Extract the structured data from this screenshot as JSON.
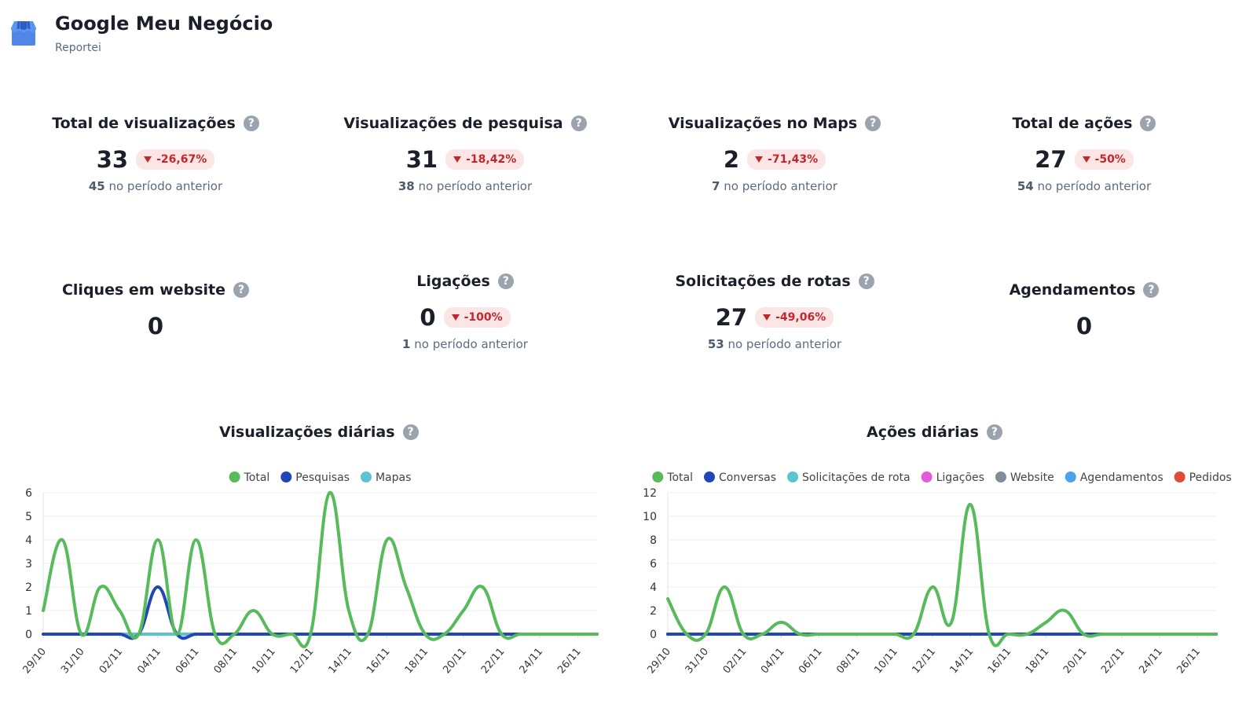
{
  "header": {
    "title": "Google Meu Negócio",
    "subtitle": "Reportei",
    "logo_icon": "google-my-business-store-icon"
  },
  "metrics": [
    {
      "label": "Total de visualizações",
      "value": "33",
      "change": "-26,67%",
      "prev_value": "45",
      "prev_text": "no período anterior"
    },
    {
      "label": "Visualizações de pesquisa",
      "value": "31",
      "change": "-18,42%",
      "prev_value": "38",
      "prev_text": "no período anterior"
    },
    {
      "label": "Visualizações no Maps",
      "value": "2",
      "change": "-71,43%",
      "prev_value": "7",
      "prev_text": "no período anterior"
    },
    {
      "label": "Total de ações",
      "value": "27",
      "change": "-50%",
      "prev_value": "54",
      "prev_text": "no período anterior"
    },
    {
      "label": "Cliques em website",
      "value": "0"
    },
    {
      "label": "Ligações",
      "value": "0",
      "change": "-100%",
      "prev_value": "1",
      "prev_text": "no período anterior"
    },
    {
      "label": "Solicitações de rotas",
      "value": "27",
      "change": "-49,06%",
      "prev_value": "53",
      "prev_text": "no período anterior"
    },
    {
      "label": "Agendamentos",
      "value": "0"
    }
  ],
  "colors": {
    "total": "#57bb5b",
    "pesquisas": "#2146b8",
    "mapas": "#5bc4d0",
    "conversas": "#2146b8",
    "solicitacoes": "#5bc4d0",
    "ligacoes": "#e45ad8",
    "website": "#7f8c99",
    "agendamentos": "#4aa3ec",
    "pedidos": "#e04a3a",
    "badge_text": "#c0282d",
    "badge_bg": "#fbe5e5"
  },
  "chart_data": [
    {
      "type": "line",
      "title": "Visualizações diárias",
      "xlabel": "",
      "ylabel": "",
      "ylim": [
        0,
        6
      ],
      "yticks": [
        0,
        1,
        2,
        3,
        4,
        5,
        6
      ],
      "xtick_labels": [
        "29/10",
        "31/10",
        "02/11",
        "04/11",
        "06/11",
        "08/11",
        "10/11",
        "12/11",
        "14/11",
        "16/11",
        "18/11",
        "20/11",
        "22/11",
        "24/11",
        "26/11"
      ],
      "x": [
        "29/10",
        "30/10",
        "31/10",
        "01/11",
        "02/11",
        "03/11",
        "04/11",
        "05/11",
        "06/11",
        "07/11",
        "08/11",
        "09/11",
        "10/11",
        "11/11",
        "12/11",
        "13/11",
        "14/11",
        "15/11",
        "16/11",
        "17/11",
        "18/11",
        "19/11",
        "20/11",
        "21/11",
        "22/11",
        "23/11",
        "24/11",
        "25/11",
        "26/11",
        "27/11"
      ],
      "legend_position": "top",
      "grid": true,
      "series": [
        {
          "name": "Total",
          "color_key": "total",
          "values": [
            1,
            4,
            0,
            2,
            1,
            0,
            4,
            0,
            4,
            0,
            0,
            1,
            0,
            0,
            0,
            6,
            1,
            0,
            4,
            2,
            0,
            0,
            1,
            2,
            0,
            0,
            0,
            0,
            0,
            0
          ]
        },
        {
          "name": "Pesquisas",
          "color_key": "pesquisas",
          "values": [
            0,
            0,
            0,
            0,
            0,
            0,
            2,
            0,
            0,
            0,
            0,
            0,
            0,
            0,
            0,
            0,
            0,
            0,
            0,
            0,
            0,
            0,
            0,
            0,
            0,
            0,
            0,
            0,
            0,
            0
          ]
        },
        {
          "name": "Mapas",
          "color_key": "mapas",
          "values": [
            0,
            0,
            0,
            0,
            0,
            0,
            0,
            0,
            0,
            0,
            0,
            0,
            0,
            0,
            0,
            0,
            0,
            0,
            0,
            0,
            0,
            0,
            0,
            0,
            0,
            0,
            0,
            0,
            0,
            0
          ]
        }
      ]
    },
    {
      "type": "line",
      "title": "Ações diárias",
      "xlabel": "",
      "ylabel": "",
      "ylim": [
        0,
        12
      ],
      "yticks": [
        0,
        2,
        4,
        6,
        8,
        10,
        12
      ],
      "xtick_labels": [
        "29/10",
        "31/10",
        "02/11",
        "04/11",
        "06/11",
        "08/11",
        "10/11",
        "12/11",
        "14/11",
        "16/11",
        "18/11",
        "20/11",
        "22/11",
        "24/11",
        "26/11"
      ],
      "x": [
        "29/10",
        "30/10",
        "31/10",
        "01/11",
        "02/11",
        "03/11",
        "04/11",
        "05/11",
        "06/11",
        "07/11",
        "08/11",
        "09/11",
        "10/11",
        "11/11",
        "12/11",
        "13/11",
        "14/11",
        "15/11",
        "16/11",
        "17/11",
        "18/11",
        "19/11",
        "20/11",
        "21/11",
        "22/11",
        "23/11",
        "24/11",
        "25/11",
        "26/11",
        "27/11"
      ],
      "legend_position": "top",
      "grid": true,
      "series": [
        {
          "name": "Total",
          "color_key": "total",
          "values": [
            3,
            0,
            0,
            4,
            0,
            0,
            1,
            0,
            0,
            0,
            0,
            0,
            0,
            0,
            4,
            1,
            11,
            0,
            0,
            0,
            1,
            2,
            0,
            0,
            0,
            0,
            0,
            0,
            0,
            0
          ]
        },
        {
          "name": "Conversas",
          "color_key": "conversas",
          "values": [
            0,
            0,
            0,
            0,
            0,
            0,
            0,
            0,
            0,
            0,
            0,
            0,
            0,
            0,
            0,
            0,
            0,
            0,
            0,
            0,
            0,
            0,
            0,
            0,
            0,
            0,
            0,
            0,
            0,
            0
          ]
        },
        {
          "name": "Solicitações de rota",
          "color_key": "solicitacoes",
          "values": [
            0,
            0,
            0,
            0,
            0,
            0,
            0,
            0,
            0,
            0,
            0,
            0,
            0,
            0,
            0,
            0,
            0,
            0,
            0,
            0,
            0,
            0,
            0,
            0,
            0,
            0,
            0,
            0,
            0,
            0
          ]
        },
        {
          "name": "Ligações",
          "color_key": "ligacoes",
          "values": [
            0,
            0,
            0,
            0,
            0,
            0,
            0,
            0,
            0,
            0,
            0,
            0,
            0,
            0,
            0,
            0,
            0,
            0,
            0,
            0,
            0,
            0,
            0,
            0,
            0,
            0,
            0,
            0,
            0,
            0
          ]
        },
        {
          "name": "Website",
          "color_key": "website",
          "values": [
            0,
            0,
            0,
            0,
            0,
            0,
            0,
            0,
            0,
            0,
            0,
            0,
            0,
            0,
            0,
            0,
            0,
            0,
            0,
            0,
            0,
            0,
            0,
            0,
            0,
            0,
            0,
            0,
            0,
            0
          ]
        },
        {
          "name": "Agendamentos",
          "color_key": "agendamentos",
          "values": [
            0,
            0,
            0,
            0,
            0,
            0,
            0,
            0,
            0,
            0,
            0,
            0,
            0,
            0,
            0,
            0,
            0,
            0,
            0,
            0,
            0,
            0,
            0,
            0,
            0,
            0,
            0,
            0,
            0,
            0
          ]
        },
        {
          "name": "Pedidos",
          "color_key": "pedidos",
          "values": [
            0,
            0,
            0,
            0,
            0,
            0,
            0,
            0,
            0,
            0,
            0,
            0,
            0,
            0,
            0,
            0,
            0,
            0,
            0,
            0,
            0,
            0,
            0,
            0,
            0,
            0,
            0,
            0,
            0,
            0
          ]
        }
      ]
    }
  ]
}
